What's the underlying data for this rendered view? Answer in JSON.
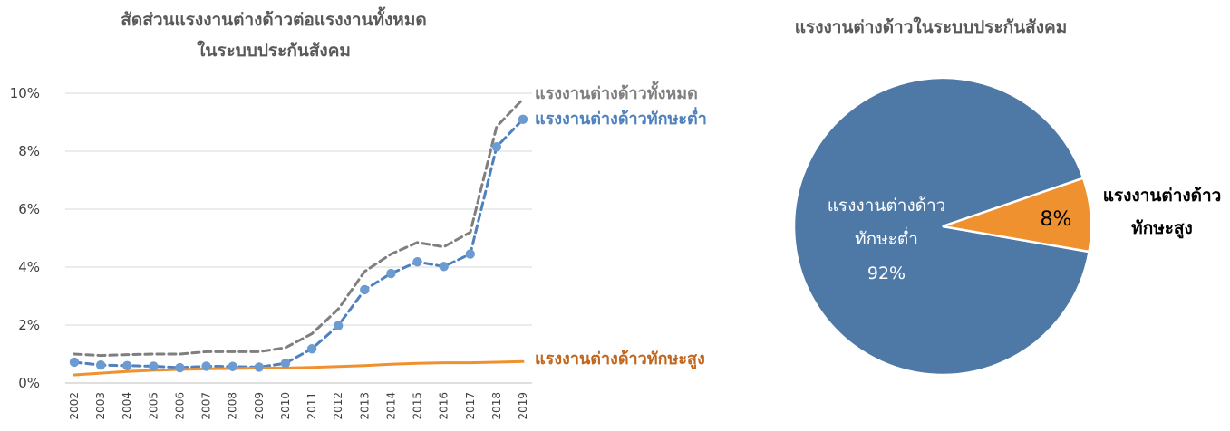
{
  "chart_data": [
    {
      "type": "line",
      "title_lines": [
        "สัดส่วนแรงงานต่างด้าวต่อแรงงานทั้งหมด",
        "ในระบบประกันสังคม"
      ],
      "x": [
        "2002",
        "2003",
        "2004",
        "2005",
        "2006",
        "2007",
        "2008",
        "2009",
        "2010",
        "2011",
        "2012",
        "2013",
        "2014",
        "2015",
        "2016",
        "2017",
        "2018",
        "2019"
      ],
      "ylim": [
        0,
        10
      ],
      "yticks": [
        "0%",
        "2%",
        "4%",
        "6%",
        "8%",
        "10%"
      ],
      "ytick_values": [
        0,
        2,
        4,
        6,
        8,
        10
      ],
      "grid": true,
      "series": [
        {
          "name": "แรงงานต่างด้าวทั้งหมด",
          "color": "#7f7f7f",
          "style": "dashed",
          "values": [
            1.0,
            0.95,
            0.98,
            1.0,
            1.0,
            1.08,
            1.08,
            1.08,
            1.22,
            1.7,
            2.55,
            3.85,
            4.45,
            4.85,
            4.7,
            5.2,
            8.85,
            9.8
          ]
        },
        {
          "name": "แรงงานต่างด้าวทักษะต่ำ",
          "color": "#4f81bd",
          "marker_color": "#6b9bd1",
          "style": "dashed-markers",
          "values": [
            0.72,
            0.62,
            0.6,
            0.58,
            0.53,
            0.58,
            0.57,
            0.55,
            0.68,
            1.18,
            1.98,
            3.22,
            3.78,
            4.18,
            4.02,
            4.45,
            8.15,
            9.1
          ]
        },
        {
          "name": "แรงงานต่างด้าวทักษะสูง",
          "color": "#f0912f",
          "label_color": "#c0661e",
          "style": "solid",
          "values": [
            0.28,
            0.34,
            0.4,
            0.44,
            0.47,
            0.49,
            0.5,
            0.52,
            0.52,
            0.54,
            0.57,
            0.6,
            0.65,
            0.68,
            0.7,
            0.7,
            0.72,
            0.74
          ]
        }
      ]
    },
    {
      "type": "pie",
      "title": "แรงงานต่างด้าวในระบบประกันสังคม",
      "slices": [
        {
          "label_lines": [
            "แรงงานต่างด้าว",
            "ทักษะต่ำ"
          ],
          "value": 92,
          "value_label": "92%",
          "color": "#4e79a7"
        },
        {
          "label_lines": [
            "แรงงานต่างด้าว",
            "ทักษะสูง"
          ],
          "value": 8,
          "value_label": "8%",
          "color": "#f0912f"
        }
      ]
    }
  ]
}
